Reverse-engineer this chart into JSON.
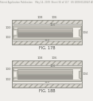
{
  "bg_color": "#f0eeeb",
  "header_text": "Patent Application Publication    May 14, 2009  Sheet 56 of 117   US 2009/0120647 A1",
  "fig1_label": "FIG. 17B",
  "fig2_label": "FIG. 18B",
  "hatch_color": "#aaa89f",
  "hatch_bg": "#d8d5ce",
  "mid_bg": "#edeae4",
  "outer_casing_fill": "#ccc9c0",
  "outer_casing_edge": "#888880",
  "inner_white": "#f2efe9",
  "pipe_gray": "#b8b4ac",
  "pipe_dark": "#9a9690",
  "pipe_darkest": "#807c76",
  "label_color": "#444440",
  "header_color": "#999994",
  "ref_color": "#666660"
}
